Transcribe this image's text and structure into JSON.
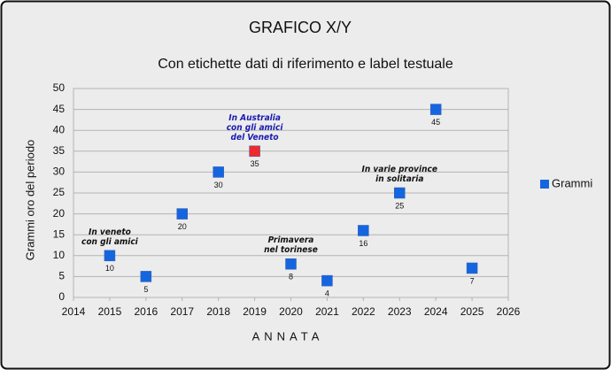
{
  "chart_data": {
    "type": "scatter",
    "title": "GRAFICO X/Y",
    "subtitle": "Con etichette dati di riferimento e label testuale",
    "x_label": "ANNATA",
    "y_label": "Grammi oro del periodo",
    "xlim": [
      2014,
      2026
    ],
    "xticks": [
      2014,
      2015,
      2016,
      2017,
      2018,
      2019,
      2020,
      2021,
      2022,
      2023,
      2024,
      2025,
      2026
    ],
    "ylim": [
      0,
      50
    ],
    "yticks": [
      0,
      5,
      10,
      15,
      20,
      25,
      30,
      35,
      40,
      45,
      50
    ],
    "grid": true,
    "legend": "right",
    "series": [
      {
        "name": "Grammi",
        "color": "#1565e0",
        "x": [
          2015,
          2016,
          2017,
          2018,
          2019,
          2020,
          2021,
          2022,
          2023,
          2024,
          2025
        ],
        "values": [
          10,
          5,
          20,
          30,
          35,
          8,
          4,
          16,
          25,
          45,
          7
        ],
        "colors": [
          "#1565e0",
          "#1565e0",
          "#1565e0",
          "#1565e0",
          "#ee2b2b",
          "#1565e0",
          "#1565e0",
          "#1565e0",
          "#1565e0",
          "#1565e0",
          "#1565e0"
        ],
        "annotations": [
          {
            "lines": [
              "In veneto",
              "con gli amici"
            ],
            "color": "#111111"
          },
          null,
          null,
          null,
          {
            "lines": [
              "In Australia",
              "con gli amici",
              "del Veneto"
            ],
            "color": "#1a1ab0"
          },
          {
            "lines": [
              "Primavera",
              "nel torinese"
            ],
            "color": "#111111"
          },
          null,
          null,
          {
            "lines": [
              "In varie province",
              "in solitaria"
            ],
            "color": "#111111"
          },
          null,
          null
        ]
      }
    ]
  }
}
